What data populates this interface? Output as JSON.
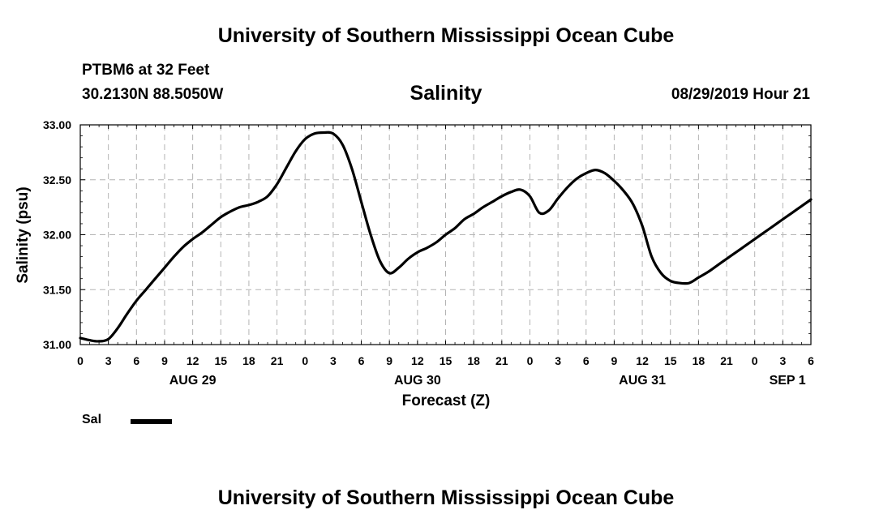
{
  "header": {
    "title": "University of Southern Mississippi Ocean Cube",
    "station": "PTBM6 at 32 Feet",
    "coordinates": "30.2130N 88.5050W",
    "chart_title": "Salinity",
    "timestamp": "08/29/2019 Hour 21"
  },
  "footer": {
    "title": "University of Southern Mississippi Ocean Cube"
  },
  "legend": {
    "label": "Sal",
    "color": "#000000"
  },
  "chart_data": {
    "type": "line",
    "title": "Salinity",
    "xlabel": "Forecast (Z)",
    "ylabel": "Salinity (psu)",
    "xlim": [
      0,
      78
    ],
    "ylim": [
      31.0,
      33.0
    ],
    "grid": true,
    "y_ticks": [
      "31.00",
      "31.50",
      "32.00",
      "32.50",
      "33.00"
    ],
    "x_tick_labels": [
      "0",
      "3",
      "6",
      "9",
      "12",
      "15",
      "18",
      "21",
      "0",
      "3",
      "6",
      "9",
      "12",
      "15",
      "18",
      "21",
      "0",
      "3",
      "6",
      "9",
      "12",
      "15",
      "18",
      "21",
      "0",
      "3",
      "6"
    ],
    "day_labels": [
      {
        "label": "AUG 29",
        "hour": 12
      },
      {
        "label": "AUG 30",
        "hour": 36
      },
      {
        "label": "AUG 31",
        "hour": 60
      },
      {
        "label": "SEP 1",
        "hour": 75.5
      }
    ],
    "series": [
      {
        "name": "Sal",
        "x": [
          0,
          1,
          2,
          3,
          4,
          5,
          6,
          7,
          8,
          9,
          10,
          11,
          12,
          13,
          14,
          15,
          16,
          17,
          18,
          19,
          20,
          21,
          22,
          23,
          24,
          25,
          26,
          27,
          28,
          29,
          30,
          31,
          32,
          33,
          34,
          35,
          36,
          37,
          38,
          39,
          40,
          41,
          42,
          43,
          44,
          45,
          46,
          47,
          48,
          49,
          50,
          51,
          52,
          53,
          54,
          55,
          56,
          57,
          58,
          59,
          60,
          61,
          62,
          63,
          64,
          65,
          66,
          67,
          68,
          69,
          70,
          71,
          72,
          73,
          74,
          75,
          76,
          77,
          78
        ],
        "values": [
          31.06,
          31.04,
          31.03,
          31.05,
          31.15,
          31.28,
          31.4,
          31.5,
          31.6,
          31.7,
          31.8,
          31.89,
          31.96,
          32.02,
          32.09,
          32.16,
          32.21,
          32.25,
          32.27,
          32.3,
          32.35,
          32.46,
          32.61,
          32.76,
          32.87,
          32.92,
          32.93,
          32.92,
          32.82,
          32.6,
          32.3,
          32.0,
          31.76,
          31.65,
          31.7,
          31.78,
          31.84,
          31.88,
          31.93,
          32.0,
          32.06,
          32.14,
          32.19,
          32.25,
          32.3,
          32.35,
          32.39,
          32.41,
          32.35,
          32.2,
          32.22,
          32.33,
          32.43,
          32.51,
          32.56,
          32.59,
          32.56,
          32.49,
          32.4,
          32.28,
          32.08,
          31.8,
          31.65,
          31.58,
          31.56,
          31.56,
          31.61,
          31.66,
          31.72,
          31.78,
          31.84,
          31.9,
          31.96,
          32.02,
          32.08,
          32.14,
          32.2,
          32.26,
          32.32
        ]
      }
    ]
  }
}
